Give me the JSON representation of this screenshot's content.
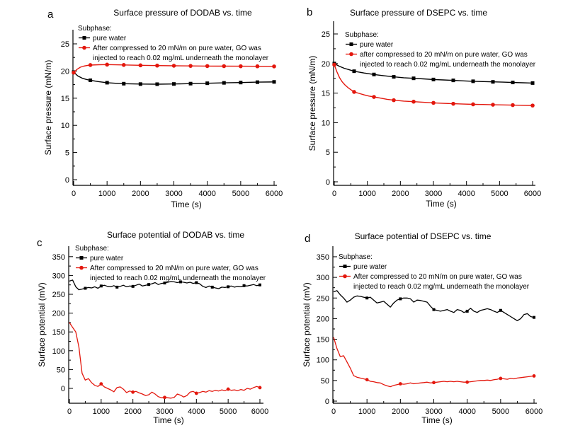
{
  "figure": {
    "background": "#ffffff",
    "series_colors": {
      "pure_water": "#000000",
      "go_injected": "#e3170d"
    }
  },
  "chart_data": [
    {
      "type": "line",
      "letter": "a",
      "title": "Surface pressure of DODAB vs. time",
      "xlabel": "Time (s)",
      "ylabel": "Surface pressure (mN/m)",
      "xlim": [
        0,
        6100
      ],
      "ylim": [
        -1,
        27.5
      ],
      "x_ticks": [
        0,
        1000,
        2000,
        3000,
        4000,
        5000,
        6000
      ],
      "y_ticks": [
        0,
        5,
        10,
        15,
        20,
        25
      ],
      "x_minor_step": 500,
      "y_minor_step": 2.5,
      "grid": false,
      "legend_position": "top-left",
      "legend_header": "Subphase:",
      "series": [
        {
          "label_lines": [
            "pure water"
          ],
          "color": "#000000",
          "marker": "square",
          "x": [
            0,
            120,
            250,
            380,
            500,
            750,
            1000,
            1250,
            1500,
            2000,
            2500,
            3000,
            3500,
            4000,
            4500,
            5000,
            5500,
            6000
          ],
          "y": [
            19.8,
            19.1,
            18.7,
            18.45,
            18.3,
            18.05,
            17.85,
            17.75,
            17.67,
            17.6,
            17.58,
            17.62,
            17.68,
            17.75,
            17.82,
            17.88,
            17.95,
            18.0
          ],
          "marker_xs": [
            0,
            500,
            1000,
            1500,
            2000,
            2500,
            3000,
            3500,
            4000,
            4500,
            5000,
            5500,
            6000
          ]
        },
        {
          "label_lines": [
            "After compressed to 20 mN/m on pure water, GO was",
            "injected to reach 0.02 mg/mL underneath the monolayer"
          ],
          "color": "#e3170d",
          "marker": "circle",
          "x": [
            0,
            100,
            200,
            300,
            400,
            500,
            750,
            1000,
            1500,
            2000,
            2500,
            3000,
            3500,
            4000,
            4500,
            5000,
            5500,
            6000
          ],
          "y": [
            19.7,
            20.3,
            20.7,
            20.9,
            21.02,
            21.1,
            21.16,
            21.18,
            21.12,
            21.05,
            21.0,
            20.97,
            20.94,
            20.91,
            20.9,
            20.88,
            20.87,
            20.85
          ],
          "marker_xs": [
            0,
            500,
            1000,
            1500,
            2000,
            2500,
            3000,
            3500,
            4000,
            4500,
            5000,
            5500,
            6000
          ]
        }
      ]
    },
    {
      "type": "line",
      "letter": "b",
      "title": "Surface pressure of DSEPC vs. time",
      "xlabel": "Time (s)",
      "ylabel": "Surface pressure (mN/m)",
      "xlim": [
        0,
        6100
      ],
      "ylim": [
        -0.6,
        27.2
      ],
      "x_ticks": [
        0,
        1000,
        2000,
        3000,
        4000,
        5000,
        6000
      ],
      "y_ticks": [
        0,
        5,
        10,
        15,
        20,
        25
      ],
      "x_minor_step": 500,
      "y_minor_step": 2.5,
      "grid": false,
      "legend_position": "top-left",
      "legend_header": "Subphase:",
      "series": [
        {
          "label_lines": [
            "pure water"
          ],
          "color": "#000000",
          "marker": "square",
          "x": [
            0,
            150,
            300,
            450,
            600,
            900,
            1200,
            1500,
            1800,
            2100,
            2400,
            2700,
            3000,
            3300,
            3600,
            3900,
            4200,
            4500,
            4800,
            5100,
            5400,
            5700,
            6000
          ],
          "y": [
            20.0,
            19.55,
            19.2,
            18.95,
            18.7,
            18.4,
            18.15,
            17.93,
            17.75,
            17.6,
            17.5,
            17.4,
            17.3,
            17.22,
            17.15,
            17.07,
            17.0,
            16.95,
            16.9,
            16.85,
            16.8,
            16.75,
            16.7
          ],
          "marker_xs": [
            0,
            600,
            1200,
            1800,
            2400,
            3000,
            3600,
            4200,
            4800,
            5400,
            6000
          ]
        },
        {
          "label_lines": [
            "after compressed to 20 mN/m on pure water, GO was",
            "injected to reach 0.02 mg/mL underneath the monolayer"
          ],
          "color": "#e3170d",
          "marker": "circle",
          "x": [
            0,
            80,
            160,
            240,
            320,
            420,
            520,
            600,
            750,
            900,
            1050,
            1200,
            1400,
            1600,
            1800,
            2100,
            2400,
            2700,
            3000,
            3300,
            3600,
            3900,
            4200,
            4500,
            4800,
            5100,
            5400,
            5700,
            6000
          ],
          "y": [
            19.8,
            18.6,
            17.6,
            16.9,
            16.4,
            15.9,
            15.5,
            15.2,
            14.95,
            14.7,
            14.5,
            14.35,
            14.15,
            13.95,
            13.8,
            13.65,
            13.55,
            13.45,
            13.35,
            13.27,
            13.2,
            13.15,
            13.1,
            13.07,
            13.03,
            13.0,
            12.97,
            12.93,
            12.9
          ],
          "marker_xs": [
            0,
            600,
            1200,
            1800,
            2400,
            3000,
            3600,
            4200,
            4800,
            5400,
            6000
          ]
        }
      ]
    },
    {
      "type": "line",
      "letter": "c",
      "title": "Surface potential of DODAB vs. time",
      "xlabel": "Time (s)",
      "ylabel": "Surface potential (mV)",
      "xlim": [
        0,
        6100
      ],
      "ylim": [
        -39,
        375
      ],
      "x_ticks": [
        0,
        1000,
        2000,
        3000,
        4000,
        5000,
        6000
      ],
      "y_ticks": [
        0,
        50,
        100,
        150,
        200,
        250,
        300,
        350
      ],
      "x_minor_step": 500,
      "y_minor_step": 25,
      "grid": false,
      "legend_position": "top-left",
      "legend_header": "Subphase:",
      "series": [
        {
          "label_lines": [
            "pure water"
          ],
          "color": "#000000",
          "marker": "square",
          "x0": 0,
          "dx": 100,
          "y": [
            285,
            288,
            270,
            262,
            264,
            266,
            268,
            267,
            270,
            266,
            272,
            274,
            271,
            270,
            273,
            269,
            271,
            274,
            270,
            272,
            271,
            274,
            277,
            272,
            274,
            276,
            278,
            281,
            276,
            279,
            280,
            282,
            284,
            283,
            281,
            283,
            282,
            280,
            282,
            279,
            281,
            278,
            271,
            268,
            272,
            269,
            267,
            265,
            269,
            268,
            270,
            272,
            269,
            271,
            270,
            273,
            272,
            274,
            276,
            273,
            275
          ],
          "marker_xs": [
            500,
            1000,
            1500,
            2000,
            2500,
            3000,
            3500,
            4000,
            4500,
            5000,
            5500,
            6000
          ]
        },
        {
          "label_lines": [
            "After compressed to 20 mN/m on pure water, GO was",
            "injected to reach 0.02 mg/mL underneath the monolayer"
          ],
          "color": "#e3170d",
          "marker": "circle",
          "x0": 0,
          "dx": 100,
          "y": [
            175,
            162,
            150,
            110,
            40,
            22,
            26,
            15,
            8,
            5,
            12,
            4,
            0,
            -4,
            -9,
            2,
            4,
            -2,
            -11,
            -7,
            -10,
            -8,
            -12,
            -15,
            -19,
            -17,
            -10,
            -15,
            -22,
            -25,
            -24,
            -25,
            -26,
            -24,
            -15,
            -18,
            -23,
            -19,
            -10,
            -8,
            -13,
            -11,
            -8,
            -10,
            -6,
            -8,
            -5,
            -7,
            -4,
            -6,
            -2,
            -5,
            -4,
            -6,
            -3,
            -5,
            0,
            -2,
            2,
            5,
            2
          ],
          "marker_xs": [
            1000,
            2000,
            3000,
            4000,
            5000,
            6000
          ]
        }
      ]
    },
    {
      "type": "line",
      "letter": "d",
      "title": "Surface potential of DSEPC vs. time",
      "xlabel": "Time (s)",
      "ylabel": "Surface potential (mV)",
      "xlim": [
        0,
        6100
      ],
      "ylim": [
        -5,
        372
      ],
      "x_ticks": [
        0,
        1000,
        2000,
        3000,
        4000,
        5000,
        6000
      ],
      "y_ticks": [
        0,
        50,
        100,
        150,
        200,
        250,
        300,
        350
      ],
      "x_minor_step": 500,
      "y_minor_step": 25,
      "grid": false,
      "legend_position": "top-left",
      "legend_header": "Subphase:",
      "series": [
        {
          "label_lines": [
            "pure water"
          ],
          "color": "#000000",
          "marker": "square",
          "x0": 0,
          "dx": 100,
          "y": [
            265,
            268,
            258,
            250,
            240,
            245,
            252,
            255,
            254,
            252,
            250,
            252,
            245,
            238,
            240,
            242,
            235,
            228,
            238,
            245,
            248,
            250,
            250,
            248,
            240,
            245,
            244,
            242,
            240,
            230,
            222,
            220,
            218,
            220,
            222,
            218,
            215,
            222,
            220,
            215,
            218,
            225,
            218,
            215,
            220,
            222,
            224,
            222,
            218,
            215,
            220,
            215,
            210,
            205,
            200,
            195,
            200,
            210,
            212,
            205,
            203
          ],
          "marker_xs": [
            1000,
            2000,
            3000,
            4000,
            5000,
            6000
          ]
        },
        {
          "label_lines": [
            "After compressed to 20 mN/m on pure water, GO was",
            "injected to reach 0.02 mg/mL underneath the monolayer"
          ],
          "color": "#e3170d",
          "marker": "circle",
          "x0": 0,
          "dx": 100,
          "y": [
            155,
            128,
            108,
            110,
            95,
            80,
            62,
            58,
            56,
            54,
            52,
            48,
            47,
            45,
            44,
            40,
            37,
            35,
            38,
            40,
            42,
            41,
            42,
            44,
            42,
            43,
            44,
            45,
            46,
            44,
            45,
            46,
            47,
            48,
            47,
            48,
            47,
            48,
            47,
            46,
            46,
            47,
            48,
            49,
            50,
            50,
            51,
            50,
            52,
            53,
            55,
            54,
            53,
            55,
            54,
            56,
            57,
            58,
            59,
            60,
            61
          ],
          "marker_xs": [
            1000,
            2000,
            3000,
            4000,
            5000,
            6000
          ]
        }
      ]
    }
  ]
}
